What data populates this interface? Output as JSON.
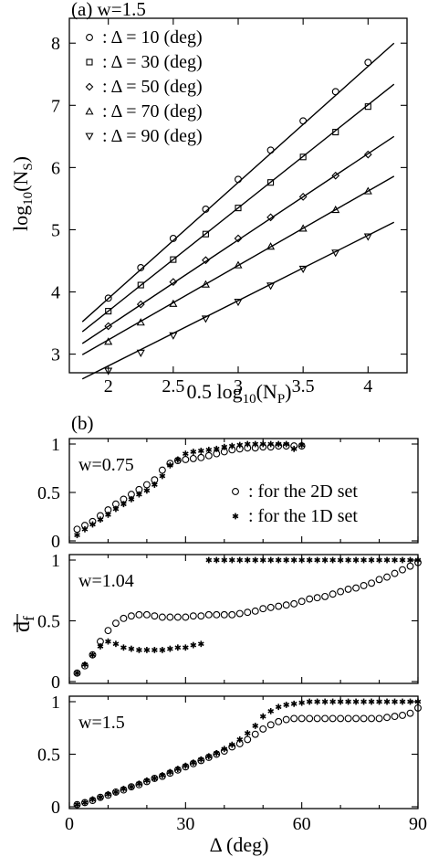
{
  "chart_data": [
    {
      "type": "scatter",
      "panel_label": "(a) w=1.5",
      "xlabel": "0.5 log10(NP)",
      "ylabel": "log10(NS)",
      "xlim": [
        1.7,
        4.3
      ],
      "ylim": [
        2.7,
        8.4
      ],
      "xticks": [
        "2",
        "2.5",
        "3",
        "3.5",
        "4"
      ],
      "yticks": [
        "3",
        "4",
        "5",
        "6",
        "7",
        "8"
      ],
      "legend_position": "top-left",
      "x": [
        2.0,
        2.25,
        2.5,
        2.75,
        3.0,
        3.25,
        3.5,
        3.75,
        4.0
      ],
      "series": [
        {
          "name": "Δ = 10 (deg)",
          "marker": "circle",
          "values": [
            3.9,
            4.39,
            4.86,
            5.33,
            5.81,
            6.28,
            6.75,
            7.22,
            7.69
          ],
          "fit": [
            [
              1.8,
              3.52
            ],
            [
              4.2,
              8.0
            ]
          ]
        },
        {
          "name": "Δ = 30 (deg)",
          "marker": "square",
          "values": [
            3.69,
            4.11,
            4.52,
            4.93,
            5.35,
            5.76,
            6.17,
            6.57,
            6.98
          ],
          "fit": [
            [
              1.8,
              3.36
            ],
            [
              4.2,
              7.34
            ]
          ]
        },
        {
          "name": "Δ = 50 (deg)",
          "marker": "diamond",
          "values": [
            3.45,
            3.8,
            4.16,
            4.51,
            4.86,
            5.2,
            5.53,
            5.87,
            6.21
          ],
          "fit": [
            [
              1.8,
              3.17
            ],
            [
              4.2,
              6.5
            ]
          ]
        },
        {
          "name": "Δ = 70 (deg)",
          "marker": "triangle-up",
          "values": [
            3.2,
            3.51,
            3.81,
            4.12,
            4.43,
            4.73,
            5.02,
            5.32,
            5.62
          ],
          "fit": [
            [
              1.8,
              2.99
            ],
            [
              4.2,
              5.86
            ]
          ]
        },
        {
          "name": "Δ = 90 (deg)",
          "marker": "triangle-down",
          "values": [
            2.73,
            3.02,
            3.3,
            3.57,
            3.84,
            4.1,
            4.37,
            4.63,
            4.89
          ],
          "fit": [
            [
              1.8,
              2.6
            ],
            [
              4.2,
              5.12
            ]
          ]
        }
      ]
    },
    {
      "type": "scatter",
      "panel_label": "(b)",
      "shared_ylabel": "d_f (overlined)",
      "xlabel": "Δ (deg)",
      "xlim": [
        0,
        90
      ],
      "ylim": [
        0,
        1.05
      ],
      "xticks": [
        "0",
        "30",
        "60",
        "90"
      ],
      "yticks": [
        "0",
        "0.5",
        "1"
      ],
      "legend": [
        {
          "name": "for the 2D set",
          "marker": "open-circle"
        },
        {
          "name": "for the 1D set",
          "marker": "asterisk"
        }
      ],
      "subplots": [
        {
          "label": "w=0.75",
          "series": [
            {
              "name": "for the 2D set",
              "x": [
                2,
                4,
                6,
                8,
                10,
                12,
                14,
                16,
                18,
                20,
                22,
                24,
                26,
                28,
                30,
                32,
                34,
                36,
                38,
                40,
                42,
                44,
                46,
                48,
                50,
                52,
                54,
                56,
                58,
                60
              ],
              "values": [
                0.12,
                0.16,
                0.2,
                0.26,
                0.32,
                0.38,
                0.43,
                0.48,
                0.53,
                0.58,
                0.63,
                0.73,
                0.8,
                0.83,
                0.84,
                0.85,
                0.86,
                0.88,
                0.9,
                0.92,
                0.94,
                0.95,
                0.96,
                0.96,
                0.97,
                0.97,
                0.98,
                0.98,
                0.98,
                0.98
              ]
            },
            {
              "name": "for the 1D set",
              "x": [
                2,
                4,
                6,
                8,
                10,
                12,
                14,
                16,
                18,
                20,
                22,
                24,
                26,
                28,
                30,
                32,
                34,
                36,
                38,
                40,
                42,
                44,
                46,
                48,
                50,
                52,
                54,
                56,
                58,
                60
              ],
              "values": [
                0.06,
                0.12,
                0.17,
                0.22,
                0.27,
                0.33,
                0.38,
                0.43,
                0.48,
                0.52,
                0.58,
                0.67,
                0.78,
                0.84,
                0.9,
                0.92,
                0.93,
                0.94,
                0.95,
                0.97,
                0.98,
                0.99,
                1.0,
                1.0,
                1.0,
                1.0,
                1.0,
                1.0,
                0.95,
                0.99
              ]
            }
          ]
        },
        {
          "label": "w=1.04",
          "series": [
            {
              "name": "for the 2D set",
              "x": [
                2,
                4,
                6,
                8,
                10,
                12,
                14,
                16,
                18,
                20,
                22,
                24,
                26,
                28,
                30,
                32,
                34,
                36,
                38,
                40,
                42,
                44,
                46,
                48,
                50,
                52,
                54,
                56,
                58,
                60,
                62,
                64,
                66,
                68,
                70,
                72,
                74,
                76,
                78,
                80,
                82,
                84,
                86,
                88,
                90
              ],
              "values": [
                0.07,
                0.13,
                0.22,
                0.33,
                0.42,
                0.48,
                0.52,
                0.54,
                0.55,
                0.55,
                0.54,
                0.53,
                0.53,
                0.53,
                0.53,
                0.54,
                0.54,
                0.55,
                0.55,
                0.55,
                0.55,
                0.56,
                0.57,
                0.58,
                0.6,
                0.61,
                0.62,
                0.63,
                0.64,
                0.66,
                0.68,
                0.69,
                0.7,
                0.72,
                0.74,
                0.76,
                0.77,
                0.79,
                0.81,
                0.84,
                0.86,
                0.89,
                0.92,
                0.95,
                0.98
              ]
            },
            {
              "name": "for the 1D set",
              "x": [
                2,
                4,
                6,
                8,
                10,
                12,
                14,
                16,
                18,
                20,
                22,
                24,
                26,
                28,
                30,
                32,
                34,
                36,
                38,
                40,
                42,
                44,
                46,
                48,
                50,
                52,
                54,
                56,
                58,
                60,
                62,
                64,
                66,
                68,
                70,
                72,
                74,
                76,
                78,
                80,
                82,
                84,
                86,
                88,
                90
              ],
              "values": [
                0.07,
                0.14,
                0.22,
                0.29,
                0.33,
                0.31,
                0.28,
                0.27,
                0.26,
                0.26,
                0.26,
                0.26,
                0.27,
                0.28,
                0.28,
                0.3,
                0.31,
                1.0,
                1.0,
                1.0,
                1.0,
                1.0,
                1.0,
                1.0,
                1.0,
                1.0,
                1.0,
                1.0,
                1.0,
                1.0,
                1.0,
                1.0,
                1.0,
                1.0,
                1.0,
                1.0,
                1.0,
                1.0,
                1.0,
                1.0,
                1.0,
                1.0,
                1.0,
                1.0,
                1.0
              ]
            }
          ]
        },
        {
          "label": "w=1.5",
          "series": [
            {
              "name": "for the 2D set",
              "x": [
                2,
                4,
                6,
                8,
                10,
                12,
                14,
                16,
                18,
                20,
                22,
                24,
                26,
                28,
                30,
                32,
                34,
                36,
                38,
                40,
                42,
                44,
                46,
                48,
                50,
                52,
                54,
                56,
                58,
                60,
                62,
                64,
                66,
                68,
                70,
                72,
                74,
                76,
                78,
                80,
                82,
                84,
                86,
                88,
                90
              ],
              "values": [
                0.02,
                0.04,
                0.06,
                0.09,
                0.11,
                0.14,
                0.16,
                0.19,
                0.21,
                0.24,
                0.27,
                0.29,
                0.32,
                0.35,
                0.38,
                0.41,
                0.44,
                0.47,
                0.5,
                0.53,
                0.57,
                0.6,
                0.64,
                0.69,
                0.74,
                0.78,
                0.81,
                0.83,
                0.84,
                0.84,
                0.84,
                0.84,
                0.84,
                0.84,
                0.84,
                0.84,
                0.84,
                0.84,
                0.84,
                0.84,
                0.85,
                0.86,
                0.87,
                0.89,
                0.94
              ]
            },
            {
              "name": "for the 1D set",
              "x": [
                2,
                4,
                6,
                8,
                10,
                12,
                14,
                16,
                18,
                20,
                22,
                24,
                26,
                28,
                30,
                32,
                34,
                36,
                38,
                40,
                42,
                44,
                46,
                48,
                50,
                52,
                54,
                56,
                58,
                60,
                62,
                64,
                66,
                68,
                70,
                72,
                74,
                76,
                78,
                80,
                82,
                84,
                86,
                88,
                90
              ],
              "values": [
                0.02,
                0.04,
                0.07,
                0.09,
                0.12,
                0.14,
                0.17,
                0.19,
                0.22,
                0.25,
                0.27,
                0.3,
                0.33,
                0.36,
                0.39,
                0.42,
                0.45,
                0.48,
                0.51,
                0.55,
                0.59,
                0.64,
                0.7,
                0.77,
                0.86,
                0.91,
                0.95,
                0.97,
                0.98,
                0.99,
                1.0,
                1.0,
                1.0,
                1.0,
                1.0,
                1.0,
                1.0,
                1.0,
                1.0,
                1.0,
                1.0,
                1.0,
                1.0,
                1.0,
                1.0
              ]
            }
          ]
        }
      ]
    }
  ]
}
